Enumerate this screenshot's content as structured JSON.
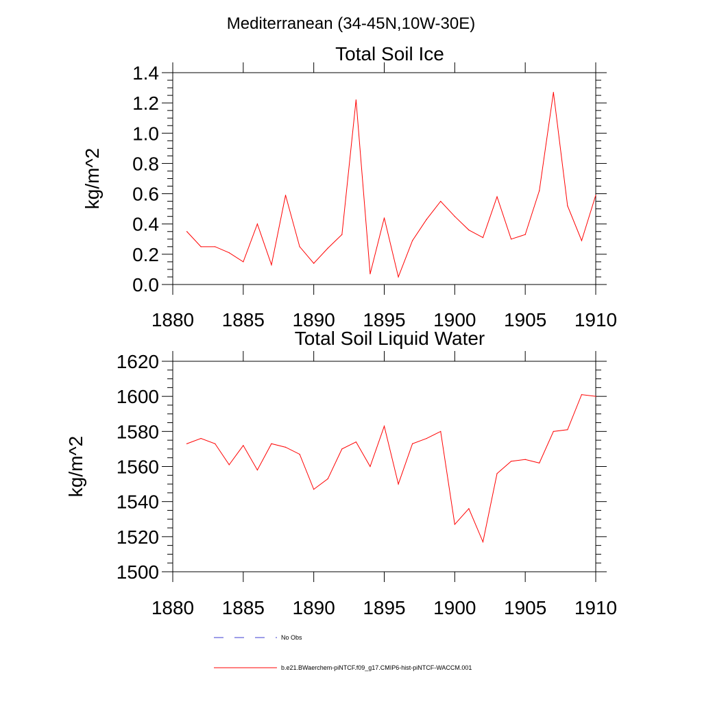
{
  "figure_title": "Mediterranean (34-45N,10W-30E)",
  "legend": {
    "obs_label": "No Obs",
    "model_label": "b.e21.BWaerchem-piNTCF.f09_g17.CMIP6-hist-piNTCF-WACCM.001",
    "obs_color": "#3b3bd0",
    "model_color": "#ff0000"
  },
  "chart_data": [
    {
      "type": "line",
      "title": "Total Soil Ice",
      "xlabel": "",
      "ylabel": "kg/m^2",
      "xlim": [
        1880,
        1910
      ],
      "ylim": [
        0.0,
        1.4
      ],
      "x_ticks": [
        "1880",
        "1885",
        "1890",
        "1895",
        "1900",
        "1905",
        "1910"
      ],
      "y_ticks": [
        "0.0",
        "0.2",
        "0.4",
        "0.6",
        "0.8",
        "1.0",
        "1.2",
        "1.4"
      ],
      "grid": false,
      "series": [
        {
          "name": "b.e21.BWaerchem-piNTCF.f09_g17.CMIP6-hist-piNTCF-WACCM.001",
          "color": "#ff0000",
          "x": [
            1881,
            1882,
            1883,
            1884,
            1885,
            1886,
            1887,
            1888,
            1889,
            1890,
            1891,
            1892,
            1893,
            1894,
            1895,
            1896,
            1897,
            1898,
            1899,
            1900,
            1901,
            1902,
            1903,
            1904,
            1905,
            1906,
            1907,
            1908,
            1909,
            1910
          ],
          "values": [
            0.35,
            0.25,
            0.25,
            0.21,
            0.15,
            0.4,
            0.13,
            0.59,
            0.25,
            0.14,
            0.24,
            0.33,
            1.22,
            0.07,
            0.44,
            0.05,
            0.29,
            0.43,
            0.55,
            0.45,
            0.36,
            0.31,
            0.58,
            0.3,
            0.33,
            0.62,
            1.27,
            0.52,
            0.29,
            0.59
          ]
        }
      ]
    },
    {
      "type": "line",
      "title": "Total Soil Liquid Water",
      "xlabel": "",
      "ylabel": "kg/m^2",
      "xlim": [
        1880,
        1910
      ],
      "ylim": [
        1500,
        1620
      ],
      "x_ticks": [
        "1880",
        "1885",
        "1890",
        "1895",
        "1900",
        "1905",
        "1910"
      ],
      "y_ticks": [
        "1500",
        "1520",
        "1540",
        "1560",
        "1580",
        "1600",
        "1620"
      ],
      "grid": false,
      "series": [
        {
          "name": "b.e21.BWaerchem-piNTCF.f09_g17.CMIP6-hist-piNTCF-WACCM.001",
          "color": "#ff0000",
          "x": [
            1881,
            1882,
            1883,
            1884,
            1885,
            1886,
            1887,
            1888,
            1889,
            1890,
            1891,
            1892,
            1893,
            1894,
            1895,
            1896,
            1897,
            1898,
            1899,
            1900,
            1901,
            1902,
            1903,
            1904,
            1905,
            1906,
            1907,
            1908,
            1909,
            1910
          ],
          "values": [
            1573,
            1576,
            1573,
            1561,
            1572,
            1558,
            1573,
            1571,
            1567,
            1547,
            1553,
            1570,
            1574,
            1560,
            1583,
            1550,
            1573,
            1576,
            1580,
            1527,
            1536,
            1517,
            1556,
            1563,
            1564,
            1562,
            1580,
            1581,
            1601,
            1600
          ]
        }
      ]
    }
  ]
}
